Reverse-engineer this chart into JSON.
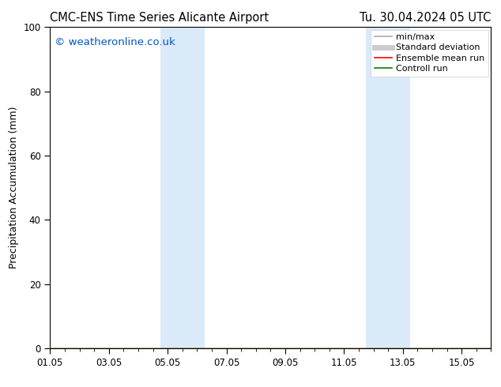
{
  "title_left": "CMC-ENS Time Series Alicante Airport",
  "title_right": "Tu. 30.04.2024 05 UTC",
  "ylabel": "Precipitation Accumulation (mm)",
  "watermark": "© weatheronline.co.uk",
  "watermark_color": "#0055cc",
  "xlim": [
    0,
    15
  ],
  "ylim": [
    0,
    100
  ],
  "yticks": [
    0,
    20,
    40,
    60,
    80,
    100
  ],
  "xtick_labels": [
    "01.05",
    "03.05",
    "05.05",
    "07.05",
    "09.05",
    "11.05",
    "13.05",
    "15.05"
  ],
  "xtick_positions": [
    0,
    2,
    4,
    6,
    8,
    10,
    12,
    14
  ],
  "background_color": "#ffffff",
  "shaded_regions": [
    {
      "start": 3.75,
      "end": 5.25,
      "color": "#daeaf8"
    },
    {
      "start": 10.75,
      "end": 12.25,
      "color": "#daeaf8"
    }
  ],
  "legend_entries": [
    {
      "label": "min/max",
      "color": "#aaaaaa",
      "lw": 1.2,
      "linestyle": "-"
    },
    {
      "label": "Standard deviation",
      "color": "#cccccc",
      "lw": 5,
      "linestyle": "-"
    },
    {
      "label": "Ensemble mean run",
      "color": "#ff0000",
      "lw": 1.2,
      "linestyle": "-"
    },
    {
      "label": "Controll run",
      "color": "#008000",
      "lw": 1.2,
      "linestyle": "-"
    }
  ],
  "title_fontsize": 10.5,
  "ylabel_fontsize": 9,
  "tick_fontsize": 8.5,
  "legend_fontsize": 8,
  "watermark_fontsize": 9.5
}
